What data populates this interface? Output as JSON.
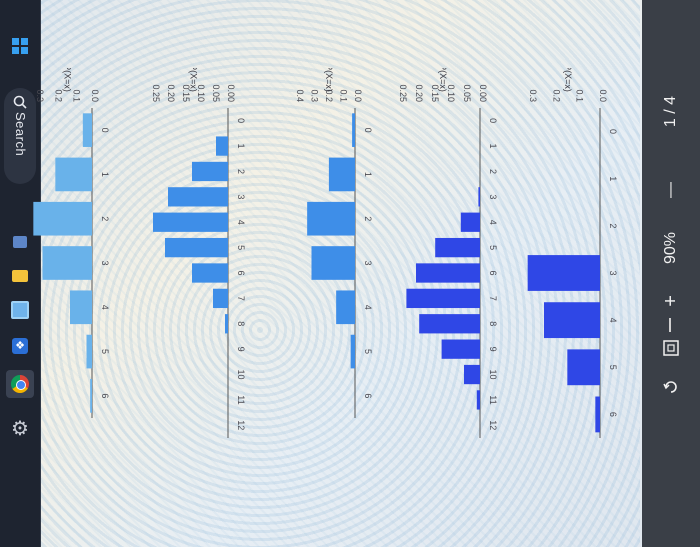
{
  "taskbar": {
    "search_label": "Search",
    "icons": [
      "windows-start-icon",
      "search-icon",
      "task-view-icon",
      "file-explorer-icon",
      "store-icon",
      "dropbox-icon",
      "chrome-icon",
      "settings-icon"
    ]
  },
  "viewer": {
    "page_indicator": "1 / 4",
    "minus": "—",
    "zoom": "90%",
    "plus": "+",
    "fit_icon": "fit-page-icon",
    "rotate_icon": "rotate-icon"
  },
  "colors": {
    "bar_dark": "#2f47e6",
    "bar_mid": "#3e8ee8",
    "bar_light": "#69b2ea",
    "taskbar": "#1e2430",
    "viewer_bar": "#3a3f47"
  },
  "chart_data": [
    {
      "type": "bar",
      "ylabel": "P(X=x)",
      "xlabel": "x",
      "categories": [
        "0",
        "1",
        "2",
        "3",
        "4",
        "5",
        "6"
      ],
      "values": [
        0.0,
        0.0,
        0.0,
        0.31,
        0.24,
        0.14,
        0.02
      ],
      "yticks": [
        "0.0",
        "0.1",
        "0.2",
        "0.3"
      ],
      "ylim": [
        0,
        0.3
      ]
    },
    {
      "type": "bar",
      "ylabel": "P(X=x)",
      "xlabel": "x",
      "categories": [
        "0",
        "1",
        "2",
        "3",
        "4",
        "5",
        "6",
        "7",
        "8",
        "9",
        "10",
        "11",
        "12"
      ],
      "values": [
        0.0,
        0.0,
        0.0,
        0.005,
        0.06,
        0.14,
        0.2,
        0.23,
        0.19,
        0.12,
        0.05,
        0.01,
        0.0
      ],
      "yticks": [
        "0.00",
        "0.05",
        "0.10",
        "0.15",
        "0.20",
        "0.25"
      ],
      "ylim": [
        0,
        0.25
      ]
    },
    {
      "type": "bar",
      "ylabel": "P(X=x)",
      "xlabel": "x",
      "categories": [
        "0",
        "1",
        "2",
        "3",
        "4",
        "5",
        "6"
      ],
      "values": [
        0.02,
        0.18,
        0.33,
        0.3,
        0.13,
        0.03,
        0.0
      ],
      "yticks": [
        "0.0",
        "0.1",
        "0.2",
        "0.3",
        "0.4"
      ],
      "ylim": [
        0,
        0.4
      ]
    },
    {
      "type": "bar",
      "ylabel": "P(X=x)",
      "xlabel": "x",
      "categories": [
        "0",
        "1",
        "2",
        "3",
        "4",
        "5",
        "6",
        "7",
        "8",
        "9",
        "10",
        "11",
        "12"
      ],
      "values": [
        0.0,
        0.04,
        0.12,
        0.2,
        0.25,
        0.21,
        0.12,
        0.05,
        0.01,
        0.0,
        0.0,
        0.0,
        0.0
      ],
      "yticks": [
        "0.00",
        "0.05",
        "0.10",
        "0.15",
        "0.20",
        "0.25"
      ],
      "ylim": [
        0,
        0.25
      ]
    },
    {
      "type": "bar",
      "ylabel": "P(X=x)",
      "xlabel": "x",
      "categories": [
        "0",
        "1",
        "2",
        "3",
        "4",
        "5",
        "6"
      ],
      "values": [
        0.05,
        0.2,
        0.32,
        0.27,
        0.12,
        0.03,
        0.01
      ],
      "yticks": [
        "0.0",
        "0.1",
        "0.2",
        "0.3"
      ],
      "ylim": [
        0,
        0.3
      ]
    }
  ]
}
